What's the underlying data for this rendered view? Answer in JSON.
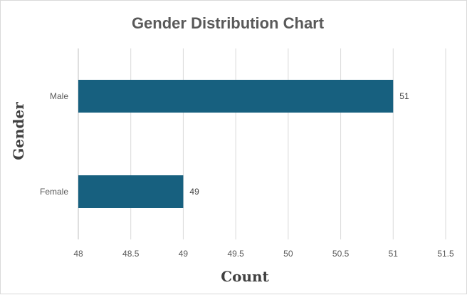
{
  "chart_data": {
    "type": "bar",
    "orientation": "horizontal",
    "title": "Gender Distribution Chart",
    "xlabel": "Count",
    "ylabel": "Gender",
    "categories": [
      "Male",
      "Female"
    ],
    "values": [
      51,
      49
    ],
    "xlim": [
      48,
      51.5
    ],
    "xticks": [
      "48",
      "48.5",
      "49",
      "49.5",
      "50",
      "50.5",
      "51",
      "51.5"
    ],
    "xtick_values": [
      48,
      48.5,
      49,
      49.5,
      50,
      50.5,
      51,
      51.5
    ],
    "data_labels": [
      "51",
      "49"
    ],
    "bar_color": "#17607f",
    "grid": true,
    "legend": "none"
  }
}
